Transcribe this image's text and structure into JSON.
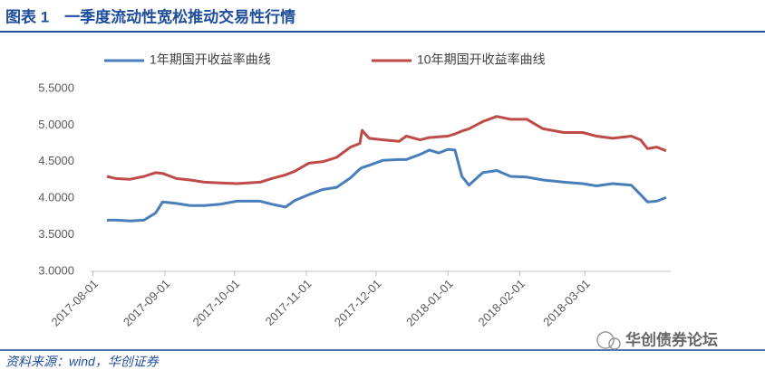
{
  "header": {
    "title": "图表 1　一季度流动性宽松推动交易性行情"
  },
  "chart_data": {
    "type": "line",
    "x": [
      "2017-08-07",
      "2017-08-11",
      "2017-08-17",
      "2017-08-23",
      "2017-08-28",
      "2017-08-31",
      "2017-09-06",
      "2017-09-12",
      "2017-09-18",
      "2017-09-25",
      "2017-10-02",
      "2017-10-12",
      "2017-10-17",
      "2017-10-23",
      "2017-10-27",
      "2017-11-02",
      "2017-11-08",
      "2017-11-14",
      "2017-11-20",
      "2017-11-24",
      "2017-11-25",
      "2017-11-28",
      "2017-12-04",
      "2017-12-11",
      "2017-12-14",
      "2017-12-20",
      "2017-12-24",
      "2017-12-28",
      "2018-01-01",
      "2018-01-04",
      "2018-01-07",
      "2018-01-10",
      "2018-01-16",
      "2018-01-22",
      "2018-01-28",
      "2018-02-04",
      "2018-02-11",
      "2018-02-20",
      "2018-02-28",
      "2018-03-06",
      "2018-03-13",
      "2018-03-21",
      "2018-03-25",
      "2018-03-28",
      "2018-04-01",
      "2018-04-05"
    ],
    "series": [
      {
        "name": "1年期国开收益率曲线",
        "color": "#4a7ebb",
        "values": [
          3.7,
          3.7,
          3.69,
          3.7,
          3.8,
          3.95,
          3.93,
          3.9,
          3.9,
          3.92,
          3.96,
          3.96,
          3.92,
          3.88,
          3.97,
          4.05,
          4.12,
          4.15,
          4.28,
          4.4,
          4.42,
          4.45,
          4.52,
          4.53,
          4.53,
          4.6,
          4.66,
          4.62,
          4.67,
          4.66,
          4.3,
          4.18,
          4.35,
          4.38,
          4.3,
          4.29,
          4.25,
          4.22,
          4.2,
          4.17,
          4.2,
          4.18,
          4.05,
          3.95,
          3.96,
          4.01
        ]
      },
      {
        "name": "10年期国开收益率曲线",
        "color": "#be4b48",
        "values": [
          4.3,
          4.27,
          4.26,
          4.3,
          4.35,
          4.34,
          4.27,
          4.25,
          4.22,
          4.21,
          4.2,
          4.22,
          4.27,
          4.32,
          4.37,
          4.48,
          4.5,
          4.56,
          4.7,
          4.75,
          4.93,
          4.82,
          4.8,
          4.78,
          4.85,
          4.8,
          4.83,
          4.84,
          4.85,
          4.88,
          4.92,
          4.95,
          5.05,
          5.12,
          5.08,
          5.08,
          4.95,
          4.9,
          4.9,
          4.85,
          4.82,
          4.85,
          4.8,
          4.68,
          4.7,
          4.65
        ]
      }
    ],
    "xlim": [
      "2017-07-31",
      "2018-04-07"
    ],
    "xticks": [
      "2017-08-01",
      "2017-09-01",
      "2017-10-01",
      "2017-11-01",
      "2017-12-01",
      "2018-01-01",
      "2018-02-01",
      "2018-03-01"
    ],
    "ylim": [
      3.0,
      5.5
    ],
    "yticks": [
      {
        "value": 3.0,
        "label": "3.0000"
      },
      {
        "value": 3.5,
        "label": "3.5000"
      },
      {
        "value": 4.0,
        "label": "4.0000"
      },
      {
        "value": 4.5,
        "label": "4.5000"
      },
      {
        "value": 5.0,
        "label": "5.0000"
      },
      {
        "value": 5.5,
        "label": "5.5000"
      }
    ],
    "legend": "top"
  },
  "footer": {
    "source": "资料来源：wind，华创证券",
    "watermark": "华创债券论坛"
  }
}
